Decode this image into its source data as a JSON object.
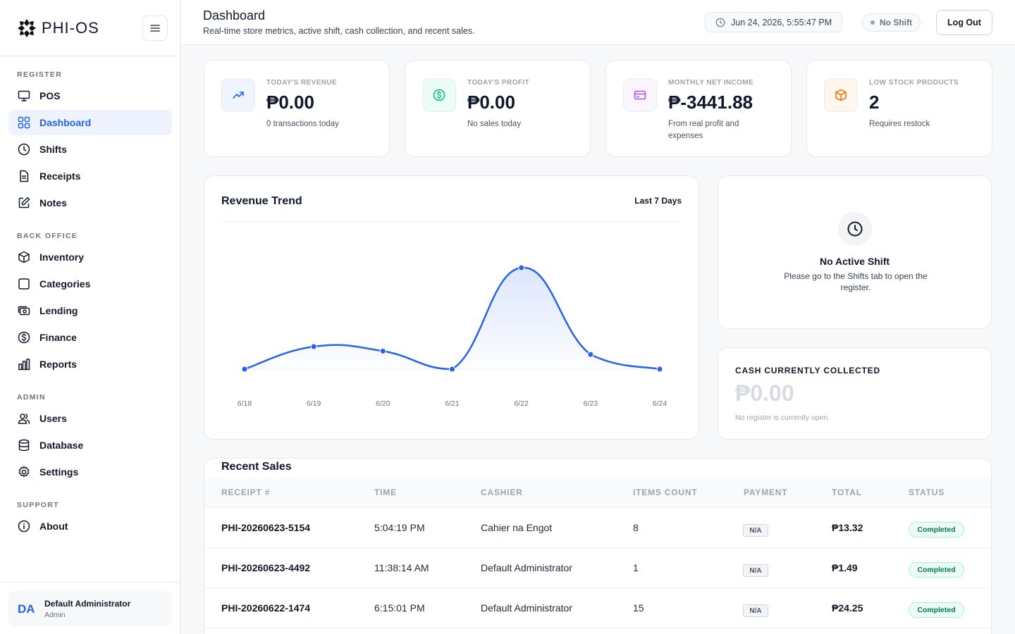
{
  "app": {
    "name": "PHI-OS"
  },
  "sidebar": {
    "sections": {
      "register": "REGISTER",
      "back_office": "BACK OFFICE",
      "admin": "ADMIN",
      "support": "SUPPORT"
    },
    "items": [
      {
        "label": "POS",
        "icon": "monitor-icon"
      },
      {
        "label": "Dashboard",
        "icon": "grid-icon",
        "active": true
      },
      {
        "label": "Shifts",
        "icon": "clock-icon"
      },
      {
        "label": "Receipts",
        "icon": "file-icon"
      },
      {
        "label": "Notes",
        "icon": "edit-icon"
      },
      {
        "label": "Inventory",
        "icon": "box-icon"
      },
      {
        "label": "Categories",
        "icon": "square-icon"
      },
      {
        "label": "Lending",
        "icon": "cash-icon"
      },
      {
        "label": "Finance",
        "icon": "dollar-circle-icon"
      },
      {
        "label": "Reports",
        "icon": "bar-chart-icon"
      },
      {
        "label": "Users",
        "icon": "users-icon"
      },
      {
        "label": "Database",
        "icon": "database-icon"
      },
      {
        "label": "Settings",
        "icon": "gear-icon"
      },
      {
        "label": "About",
        "icon": "info-icon"
      }
    ],
    "user": {
      "initials": "DA",
      "name": "Default Administrator",
      "role": "Admin"
    }
  },
  "header": {
    "title": "Dashboard",
    "subtitle": "Real-time store metrics, active shift, cash collection, and recent sales.",
    "datetime": "Jun 24, 2026, 5:55:47 PM",
    "shift_status": "No Shift",
    "logout_label": "Log Out"
  },
  "stats": [
    {
      "label": "TODAY'S REVENUE",
      "value": "₱0.00",
      "note": "0 transactions today",
      "icon": "trending-up-icon",
      "color": "#2563eb"
    },
    {
      "label": "TODAY'S PROFIT",
      "value": "₱0.00",
      "note": "No sales today",
      "icon": "dollar-circle-icon",
      "color": "#10b981"
    },
    {
      "label": "MONTHLY NET INCOME",
      "value": "₱-3441.88",
      "note": "From real profit and expenses",
      "icon": "card-icon",
      "color": "#a855f7"
    },
    {
      "label": "LOW STOCK PRODUCTS",
      "value": "2",
      "note": "Requires restock",
      "icon": "box-icon",
      "color": "#f97316"
    }
  ],
  "revenue_trend": {
    "title": "Revenue Trend",
    "range_label": "Last 7 Days"
  },
  "chart_data": {
    "type": "area",
    "categories": [
      "6/18",
      "6/19",
      "6/20",
      "6/21",
      "6/22",
      "6/23",
      "6/24"
    ],
    "series": [
      {
        "values": [
          0,
          20,
          16,
          0,
          90,
          13,
          0
        ]
      }
    ],
    "ylim": [
      0,
      100
    ],
    "grid": false,
    "color": "#2563eb"
  },
  "shift_panel": {
    "title": "No Active Shift",
    "description": "Please go to the Shifts tab to open the register."
  },
  "cash_panel": {
    "title": "CASH CURRENTLY COLLECTED",
    "value": "₱0.00",
    "note": "No register is currently open."
  },
  "recent_sales": {
    "title": "Recent Sales",
    "columns": [
      "RECEIPT #",
      "TIME",
      "CASHIER",
      "ITEMS COUNT",
      "PAYMENT",
      "TOTAL",
      "STATUS"
    ],
    "rows": [
      {
        "receipt": "PHI-20260623-5154",
        "time": "5:04:19 PM",
        "cashier": "Cahier na Engot",
        "items": "8",
        "payment": "N/A",
        "total": "₱13.32",
        "status": "Completed"
      },
      {
        "receipt": "PHI-20260623-4492",
        "time": "11:38:14 AM",
        "cashier": "Default Administrator",
        "items": "1",
        "payment": "N/A",
        "total": "₱1.49",
        "status": "Completed"
      },
      {
        "receipt": "PHI-20260622-1474",
        "time": "6:15:01 PM",
        "cashier": "Default Administrator",
        "items": "15",
        "payment": "N/A",
        "total": "₱24.25",
        "status": "Completed"
      }
    ]
  }
}
